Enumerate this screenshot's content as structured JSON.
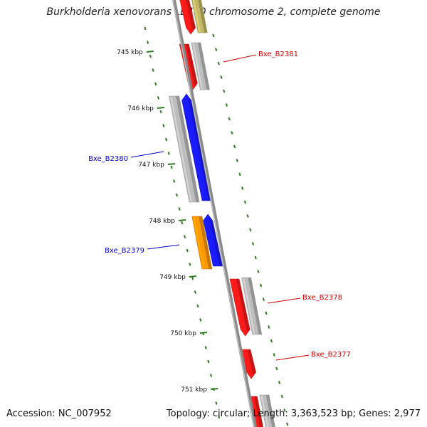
{
  "title": "Burkholderia xenovorans LB400 chromosome 2, complete genome",
  "footer": {
    "accession": "Accession: NC_007952",
    "summary": "Topology: circular; Length: 3,363,523 bp; Genes: 2,977"
  },
  "colors": {
    "backbone": "#8a8a8a",
    "tick": "#2e7d1f",
    "forward_label": "#cc0000",
    "reverse_label": "#0000cc",
    "gene_red": "#ff1a1a",
    "gene_grey": "#bdbdbd",
    "gene_blue": "#1a1aff",
    "gene_orange": "#ff9900",
    "gene_olive": "#c4b968"
  },
  "ticks": [
    {
      "label": "745 kbp"
    },
    {
      "label": "746 kbp"
    },
    {
      "label": "747 kbp"
    },
    {
      "label": "748 kbp"
    },
    {
      "label": "749 kbp"
    },
    {
      "label": "750 kbp"
    },
    {
      "label": "751 kbp"
    }
  ],
  "gene_labels": [
    {
      "text": "Bxe_B2381",
      "strand": "forward"
    },
    {
      "text": "Bxe_B2380",
      "strand": "reverse"
    },
    {
      "text": "Bxe_B2379",
      "strand": "reverse"
    },
    {
      "text": "Bxe_B2378",
      "strand": "forward"
    },
    {
      "text": "Bxe_B2377",
      "strand": "forward"
    }
  ]
}
